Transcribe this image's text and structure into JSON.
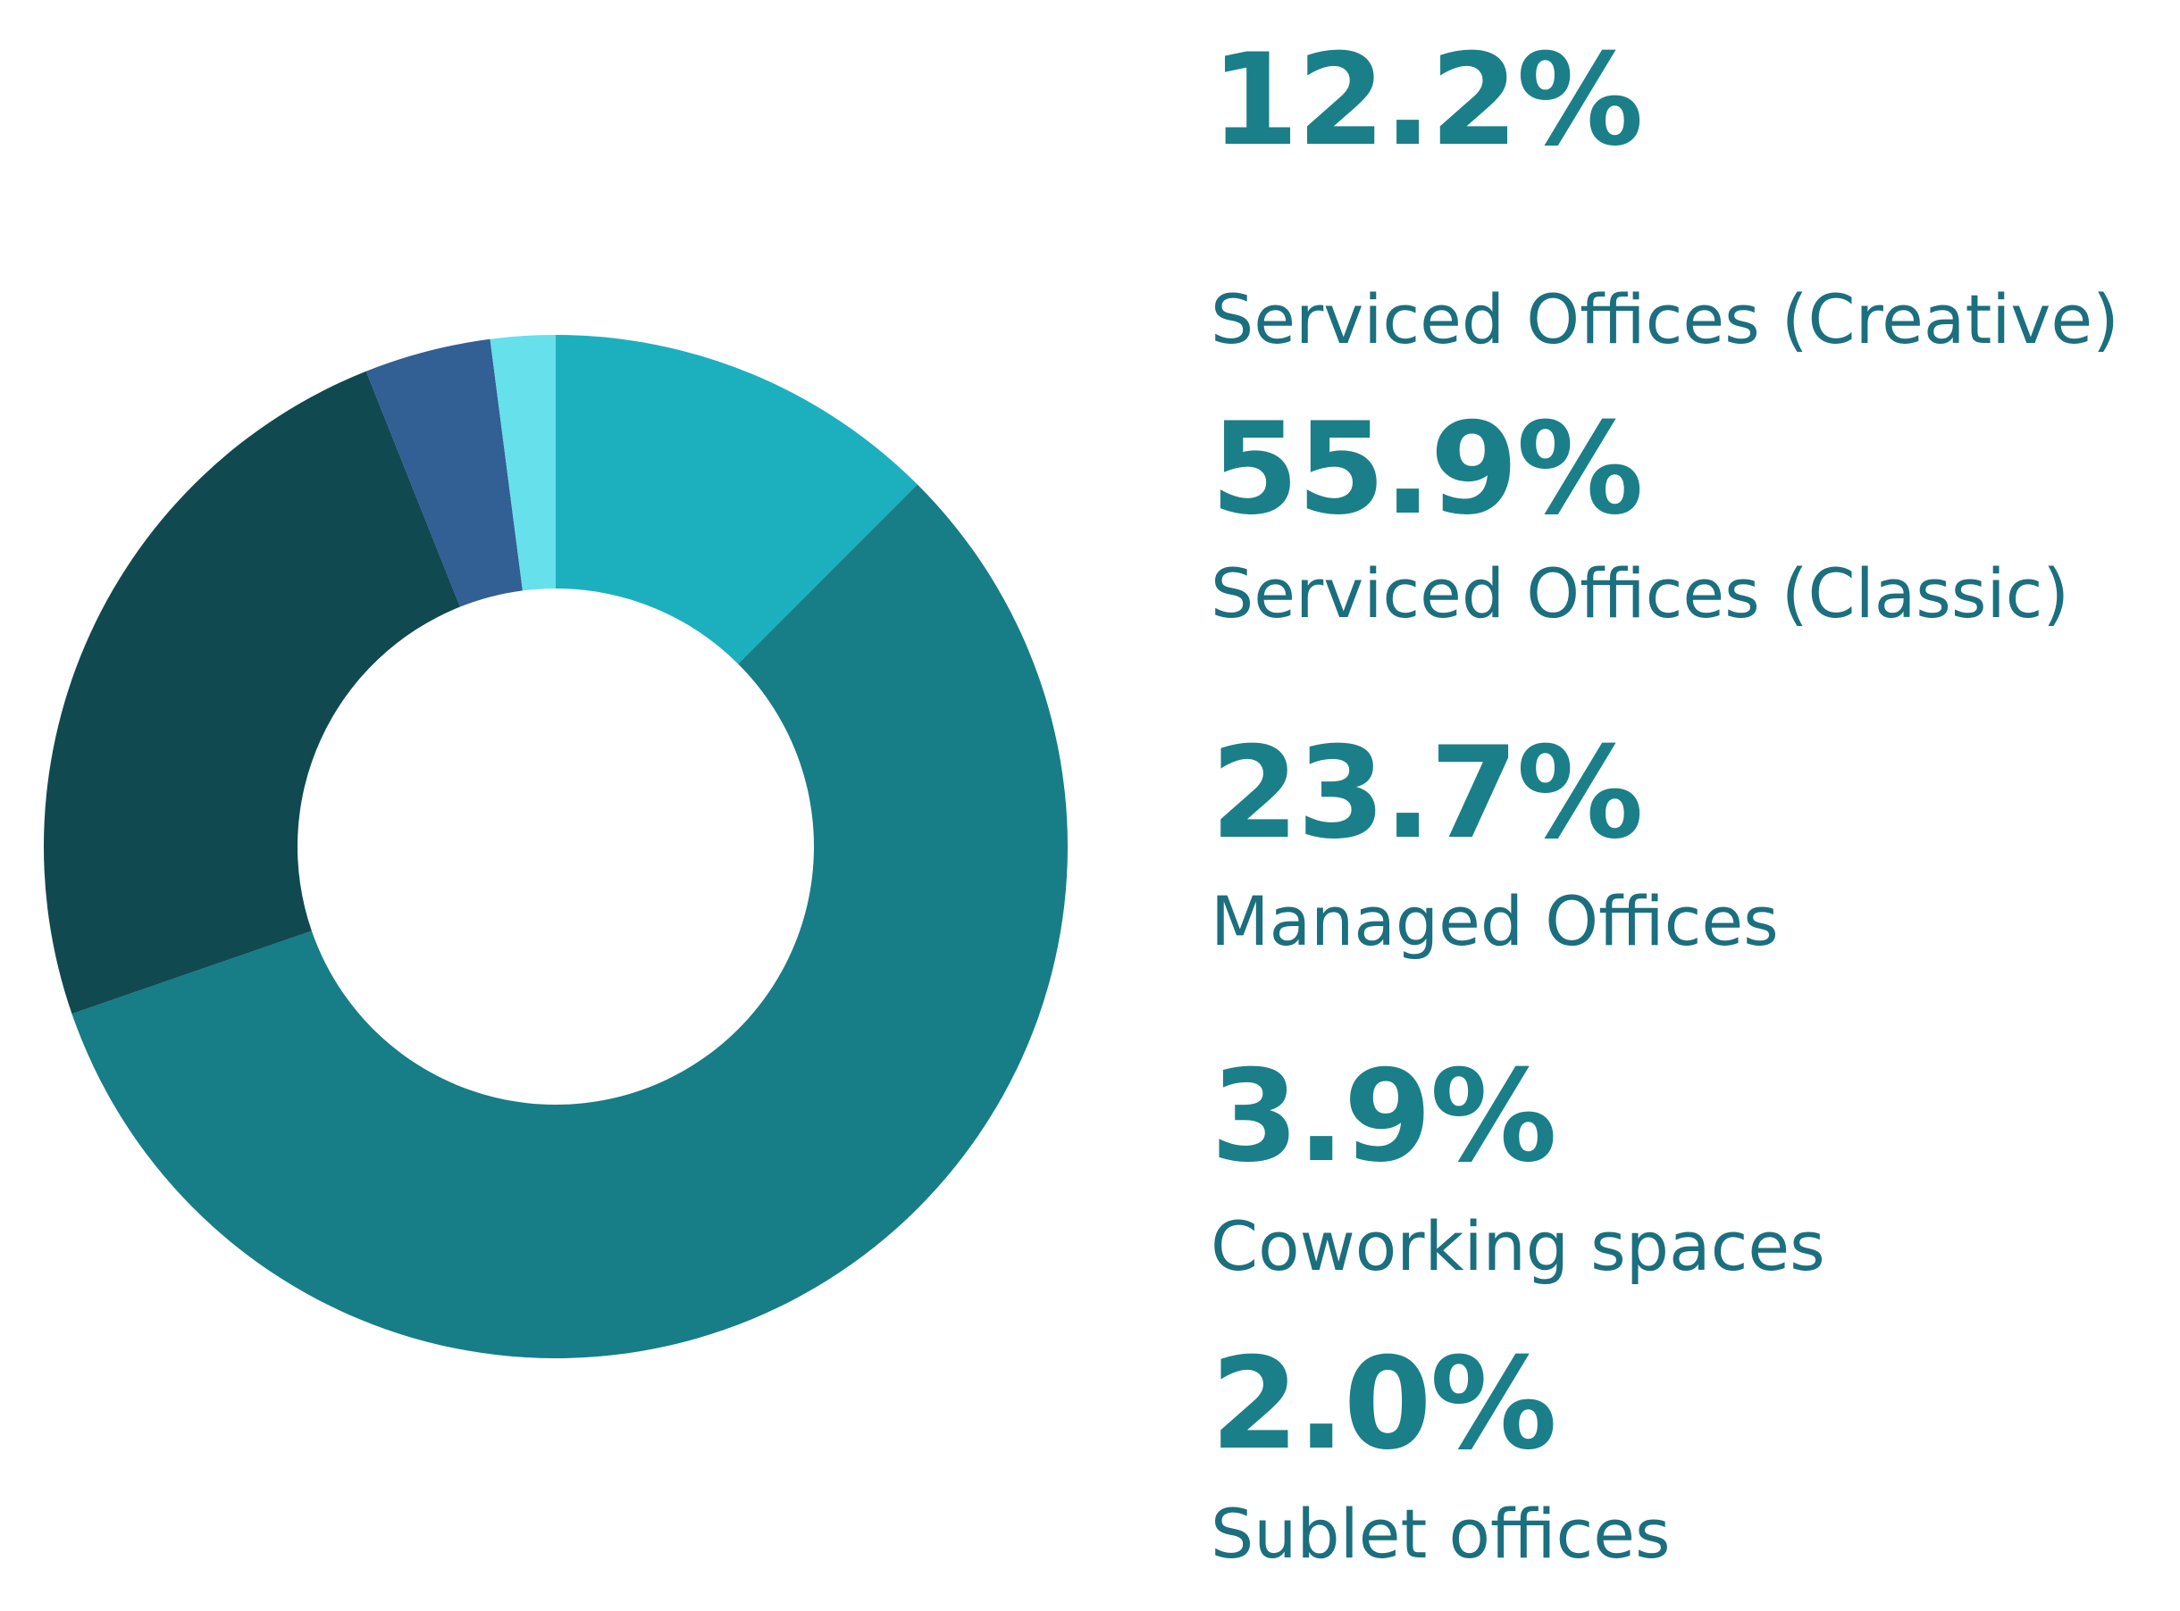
{
  "chart_data": {
    "type": "pie",
    "variant": "donut",
    "title": "",
    "slices": [
      {
        "label": "Serviced Offices (Creative)",
        "value_text": "12.2%",
        "value": 12.2,
        "color": "#1cb0bf"
      },
      {
        "label": "Serviced Offices (Classic)",
        "value_text": "55.9%",
        "value": 55.9,
        "color": "#177d87"
      },
      {
        "label": "Managed Offices",
        "value_text": "23.7%",
        "value": 23.7,
        "color": "#114950"
      },
      {
        "label": "Coworking spaces",
        "value_text": "3.9%",
        "value": 3.9,
        "color": "#325f94"
      },
      {
        "label": "Sublet offices",
        "value_text": "2.0%",
        "value": 2.0,
        "color": "#66e0ea"
      }
    ],
    "legend_position": "right",
    "start_angle": "top, clockwise"
  }
}
